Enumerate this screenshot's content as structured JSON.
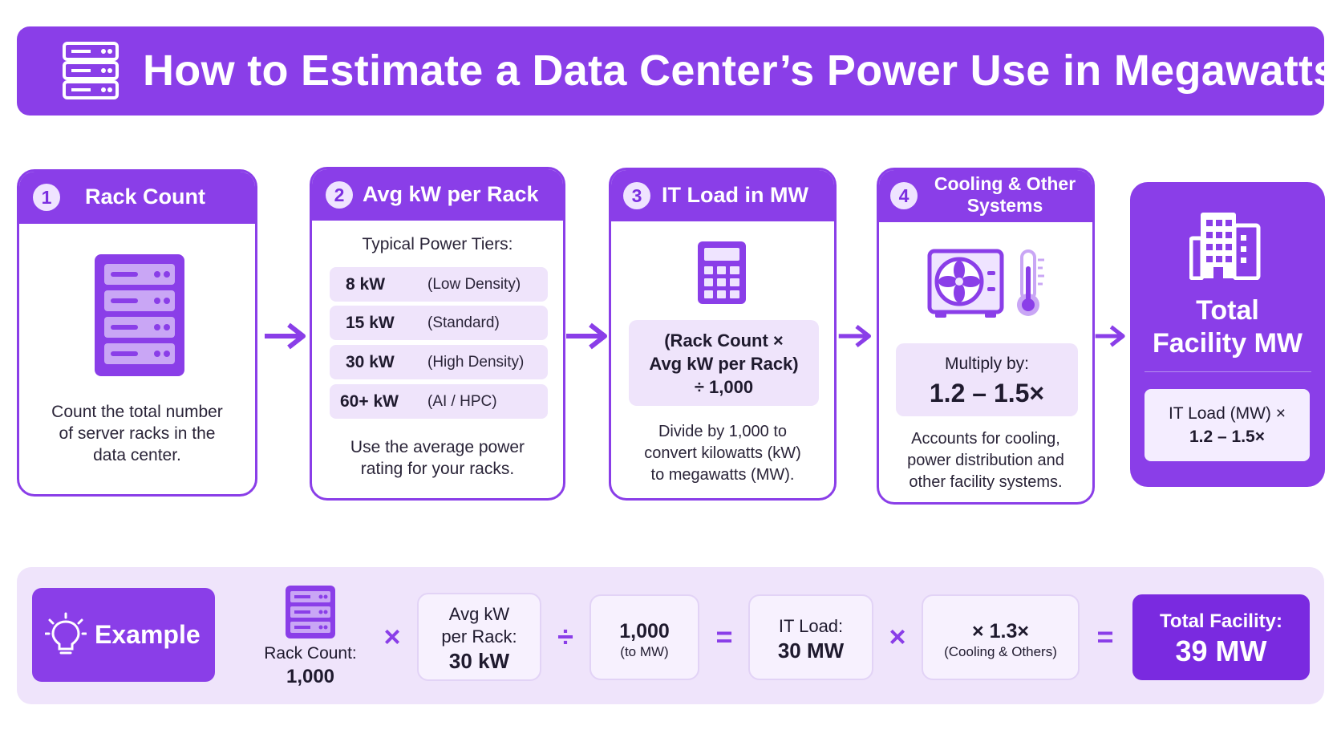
{
  "header": {
    "title": "How to Estimate a Data Center’s Power Use in Megawatts",
    "icon": "server-rack-icon"
  },
  "steps": [
    {
      "number": "1",
      "title": "Rack Count",
      "icon": "server-rack-icon",
      "description": [
        "Count the total number",
        "of server racks in the",
        "data center."
      ]
    },
    {
      "number": "2",
      "title": "Avg kW per Rack",
      "subtitle": "Typical Power Tiers:",
      "tiers": [
        {
          "value": "8 kW",
          "label": "(Low Density)"
        },
        {
          "value": "15 kW",
          "label": "(Standard)"
        },
        {
          "value": "30 kW",
          "label": "(High Density)"
        },
        {
          "value": "60+ kW",
          "label": "(AI / HPC)"
        }
      ],
      "description": [
        "Use the average power",
        "rating for your racks."
      ]
    },
    {
      "number": "3",
      "title": "IT Load in MW",
      "icon": "calculator-icon",
      "formula": [
        "(Rack Count ×",
        "Avg kW per Rack)",
        "÷ 1,000"
      ],
      "description": [
        "Divide by 1,000 to",
        "convert kilowatts (kW)",
        "to megawatts (MW)."
      ]
    },
    {
      "number": "4",
      "title": [
        "Cooling & Other",
        "Systems"
      ],
      "icons": [
        "cooling-fan-icon",
        "thermometer-icon"
      ],
      "multiplier_label": "Multiply by:",
      "multiplier_value": "1.2 – 1.5×",
      "description": [
        "Accounts for cooling,",
        "power distribution and",
        "other facility systems."
      ]
    }
  ],
  "final": {
    "icon": "building-icon",
    "title": [
      "Total",
      "Facility MW"
    ],
    "formula": [
      "IT Load (MW) ×",
      "1.2 – 1.5×"
    ]
  },
  "example": {
    "label": "Example",
    "icon": "lightbulb-icon",
    "rack_label": "Rack Count:",
    "rack_value": "1,000",
    "avg_label": [
      "Avg kW",
      "per Rack:"
    ],
    "avg_value": "30 kW",
    "divisor_value": "1,000",
    "divisor_note": "(to MW)",
    "it_label": "IT Load:",
    "it_value": "30 MW",
    "mult_value": "× 1.3×",
    "mult_note": "(Cooling & Others)",
    "result_label": "Total Facility:",
    "result_value": "39 MW",
    "ops": [
      "×",
      "÷",
      "=",
      "×",
      "="
    ]
  },
  "colors": {
    "primary": "#8a3ee8",
    "light": "#efe4fb",
    "dark": "#7a2ae0"
  }
}
